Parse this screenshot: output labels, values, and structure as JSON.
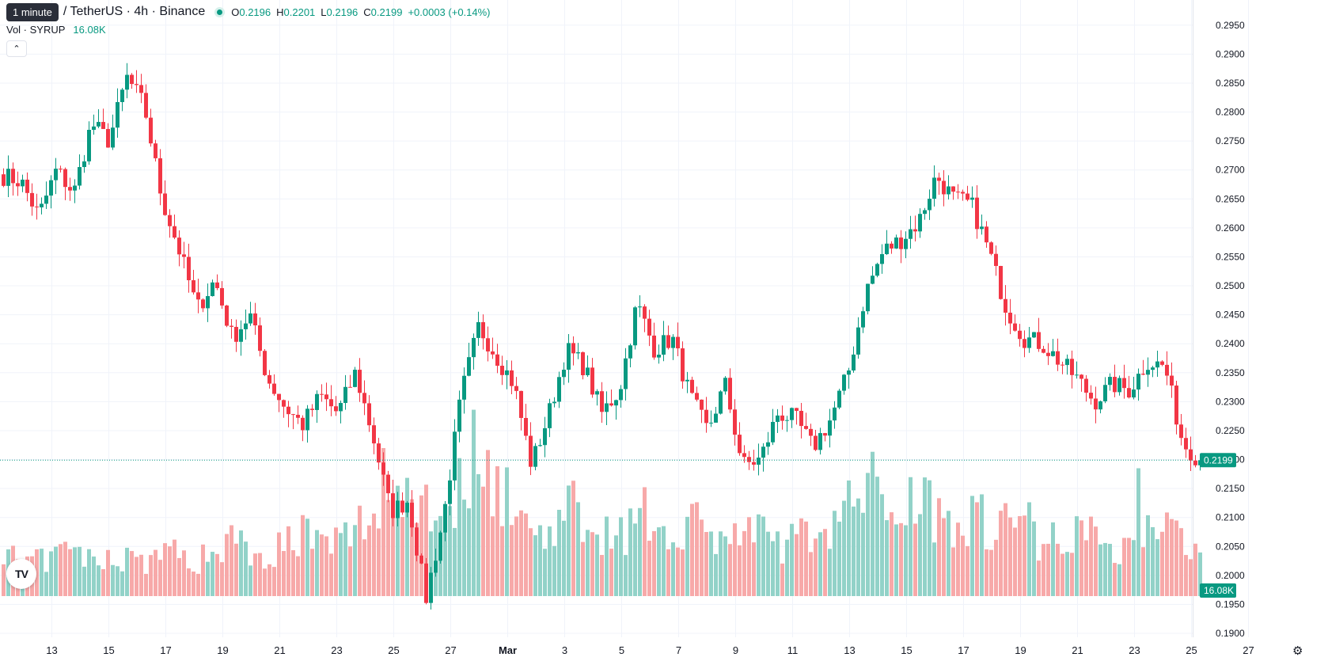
{
  "header": {
    "tooltip": "1 minute",
    "symbol": "/ TetherUS · 4h · Binance",
    "ohlc": [
      {
        "k": "O",
        "v": "0.2196"
      },
      {
        "k": "H",
        "v": "0.2201"
      },
      {
        "k": "L",
        "v": "0.2196"
      },
      {
        "k": "C",
        "v": "0.2199"
      }
    ],
    "change": "+0.0003 (+0.14%)",
    "volume_label": "Vol · SYRUP",
    "volume_value": "16.08K"
  },
  "chart_data": {
    "type": "candlestick",
    "y_axis_ticks": [
      "0.2950",
      "0.2900",
      "0.2850",
      "0.2800",
      "0.2750",
      "0.2700",
      "0.2650",
      "0.2600",
      "0.2550",
      "0.2500",
      "0.2450",
      "0.2400",
      "0.2350",
      "0.2300",
      "0.2250",
      "0.2200",
      "0.2150",
      "0.2100",
      "0.2050",
      "0.2000",
      "0.1950",
      "0.1900"
    ],
    "ylim": [
      0.1885,
      0.2975
    ],
    "x_axis_ticks": [
      "13",
      "15",
      "17",
      "19",
      "21",
      "23",
      "25",
      "27",
      "Mar",
      "3",
      "5",
      "7",
      "9",
      "11",
      "13",
      "15",
      "17",
      "19",
      "21",
      "23",
      "25",
      "27"
    ],
    "last_price": "0.2199",
    "last_volume": "16.08K",
    "colors": {
      "up": "#089981",
      "down": "#f23645",
      "up_volume": "#92d2c8",
      "down_volume": "#f7a9a9",
      "grid": "#f0f3fa"
    },
    "close_waypoints": [
      0.269,
      0.268,
      0.262,
      0.27,
      0.266,
      0.278,
      0.275,
      0.286,
      0.281,
      0.265,
      0.256,
      0.246,
      0.251,
      0.241,
      0.245,
      0.234,
      0.229,
      0.226,
      0.231,
      0.228,
      0.235,
      0.224,
      0.211,
      0.213,
      0.196,
      0.21,
      0.231,
      0.243,
      0.238,
      0.233,
      0.219,
      0.228,
      0.239,
      0.236,
      0.228,
      0.232,
      0.247,
      0.239,
      0.241,
      0.231,
      0.225,
      0.233,
      0.219,
      0.22,
      0.228,
      0.227,
      0.222,
      0.227,
      0.235,
      0.249,
      0.256,
      0.258,
      0.261,
      0.269,
      0.265,
      0.264,
      0.256,
      0.246,
      0.241,
      0.24,
      0.237,
      0.234,
      0.23,
      0.233,
      0.232,
      0.237,
      0.236,
      0.223,
      0.2199
    ],
    "volume_waypoints": [
      6,
      5,
      5,
      6,
      7,
      5,
      6,
      6,
      5,
      7,
      6,
      5,
      7,
      9,
      7,
      6,
      8,
      10,
      7,
      8,
      10,
      12,
      14,
      16,
      15,
      12,
      16,
      23,
      18,
      13,
      9,
      11,
      12,
      13,
      10,
      9,
      12,
      11,
      9,
      13,
      8,
      10,
      9,
      9,
      8,
      8,
      10,
      11,
      13,
      17,
      14,
      15,
      15,
      13,
      12,
      12,
      11,
      11,
      12,
      8,
      9,
      11,
      8,
      7,
      8,
      11,
      10,
      9,
      5
    ]
  }
}
